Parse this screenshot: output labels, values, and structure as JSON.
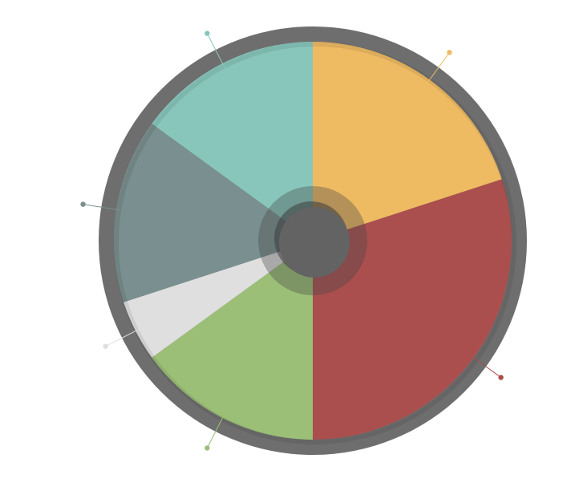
{
  "chart_data": {
    "type": "pie",
    "style": "donut",
    "title": "",
    "legend": "none",
    "grid": false,
    "slices": [
      {
        "value": 20,
        "color": "#eebb63"
      },
      {
        "value": 30,
        "color": "#aa4f4e"
      },
      {
        "value": 15,
        "color": "#9bbf77"
      },
      {
        "value": 5,
        "color": "#dfdfdf"
      },
      {
        "value": 15,
        "color": "#7a8f8f"
      },
      {
        "value": 15,
        "color": "#88c6bb"
      }
    ],
    "colors": {
      "rim": "#6e6e6e",
      "hub": "#636363",
      "hub_shadow": "#3c3c3c",
      "background": "#ffffff"
    }
  }
}
